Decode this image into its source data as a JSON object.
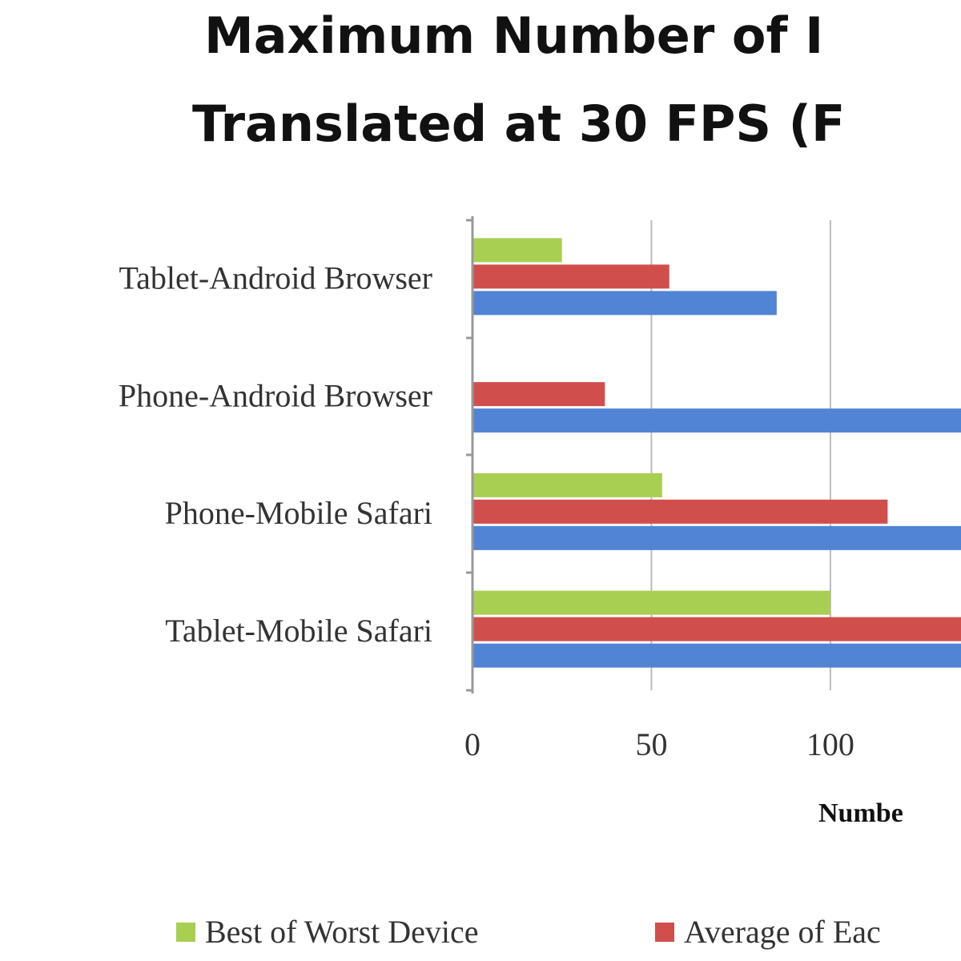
{
  "chart_data": {
    "type": "bar",
    "orientation": "horizontal",
    "title": [
      "Maximum Number of I",
      "Translated at 30 FPS (F"
    ],
    "x_label": "Numbe",
    "categories": [
      "Tablet-Android Browser",
      "Phone-Android Browser",
      "Phone-Mobile Safari",
      "Tablet-Mobile Safari"
    ],
    "series": [
      {
        "name": "Best of Worst Device",
        "color": "#a8cf52",
        "values": [
          25,
          null,
          53,
          100
        ]
      },
      {
        "name": "Average of Eac",
        "color": "#d04f4d",
        "values": [
          55,
          37,
          116,
          150
        ]
      },
      {
        "color": "#5184d4",
        "values": [
          85,
          150,
          150,
          150
        ]
      }
    ],
    "xlim": [
      0,
      136.5
    ],
    "xticks": [
      0,
      50,
      100
    ],
    "grid": true
  }
}
